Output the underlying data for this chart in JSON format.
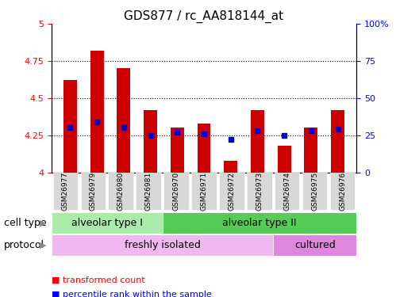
{
  "title": "GDS877 / rc_AA818144_at",
  "samples": [
    "GSM26977",
    "GSM26979",
    "GSM26980",
    "GSM26981",
    "GSM26970",
    "GSM26971",
    "GSM26972",
    "GSM26973",
    "GSM26974",
    "GSM26975",
    "GSM26976"
  ],
  "transformed_counts": [
    4.62,
    4.82,
    4.7,
    4.42,
    4.3,
    4.33,
    4.08,
    4.42,
    4.18,
    4.3,
    4.42
  ],
  "percentile_ranks": [
    30,
    34,
    30,
    25,
    27,
    26,
    22,
    28,
    25,
    28,
    29
  ],
  "ylim_left": [
    4.0,
    5.0
  ],
  "ylim_right": [
    0,
    100
  ],
  "yticks_left": [
    4.0,
    4.25,
    4.5,
    4.75,
    5.0
  ],
  "yticks_right": [
    0,
    25,
    50,
    75,
    100
  ],
  "ytick_labels_left": [
    "4",
    "4.25",
    "4.5",
    "4.75",
    "5"
  ],
  "ytick_labels_right": [
    "0",
    "25",
    "50",
    "75",
    "100%"
  ],
  "cell_type_groups": [
    {
      "label": "alveolar type I",
      "start": 0,
      "end": 3,
      "color": "#aaeaaa"
    },
    {
      "label": "alveolar type II",
      "start": 4,
      "end": 10,
      "color": "#55cc55"
    }
  ],
  "protocol_groups": [
    {
      "label": "freshly isolated",
      "start": 0,
      "end": 7,
      "color": "#f0b8f0"
    },
    {
      "label": "cultured",
      "start": 8,
      "end": 10,
      "color": "#dd88dd"
    }
  ],
  "bar_color": "#cc0000",
  "dot_color": "#0000cc",
  "grid_color": "#000000",
  "title_fontsize": 11,
  "tick_fontsize": 8,
  "label_fontsize": 9,
  "annotation_fontsize": 9,
  "bar_width": 0.5,
  "base_value": 4.0
}
